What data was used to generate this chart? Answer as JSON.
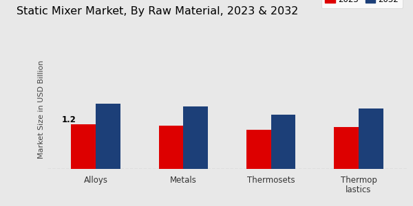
{
  "title": "Static Mixer Market, By Raw Material, 2023 & 2032",
  "ylabel": "Market Size in USD Billion",
  "categories": [
    "Alloys",
    "Metals",
    "Thermosets",
    "Thermop\nlastics"
  ],
  "values_2023": [
    1.2,
    1.15,
    1.05,
    1.12
  ],
  "values_2032": [
    1.75,
    1.68,
    1.45,
    1.62
  ],
  "color_2023": "#dd0000",
  "color_2032": "#1c3f78",
  "annotation_text": "1.2",
  "background_color": "#e8e8e8",
  "bottom_bar_color": "#cc0000",
  "bar_width": 0.28,
  "ylim": [
    0,
    3.2
  ],
  "legend_labels": [
    "2023",
    "2032"
  ],
  "title_fontsize": 11.5,
  "ylabel_fontsize": 8,
  "tick_fontsize": 8.5
}
